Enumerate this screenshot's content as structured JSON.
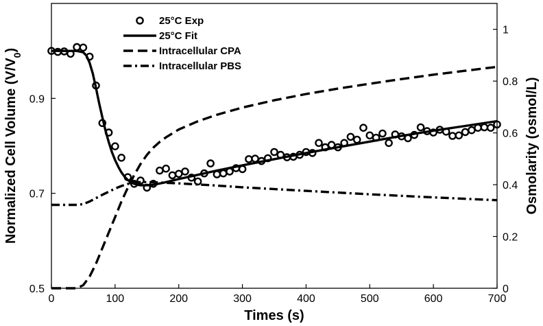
{
  "chart_data": {
    "type": "line",
    "xlabel": "Times (s)",
    "ylabel_left": "Normalized Cell Volume (V/V",
    "ylabel_left_subscript": "0",
    "ylabel_left_close": ")",
    "ylabel_right": "Osmolarity (osmol/L)",
    "xlim": [
      0,
      700
    ],
    "ylim_left": [
      0.5,
      1.1
    ],
    "ylim_right": [
      0,
      1.1
    ],
    "x_ticks": [
      "0",
      "100",
      "200",
      "300",
      "400",
      "500",
      "600",
      "700"
    ],
    "y_left_ticks": [
      "0.5",
      "0.7",
      "0.9"
    ],
    "y_right_ticks": [
      "0",
      "0.2",
      "0.4",
      "0.6",
      "0.8",
      "1"
    ],
    "legend_position": "top-left",
    "series": [
      {
        "name": "25°C Exp",
        "axis": "left",
        "style": "open-circle",
        "x": [
          0,
          10,
          20,
          30,
          40,
          50,
          60,
          70,
          80,
          90,
          100,
          110,
          120,
          130,
          140,
          150,
          160,
          170,
          180,
          190,
          200,
          210,
          220,
          230,
          240,
          250,
          260,
          270,
          280,
          290,
          300,
          310,
          320,
          330,
          340,
          350,
          360,
          370,
          380,
          390,
          400,
          410,
          420,
          430,
          440,
          450,
          460,
          470,
          480,
          490,
          500,
          510,
          520,
          530,
          540,
          550,
          560,
          570,
          580,
          590,
          600,
          610,
          620,
          630,
          640,
          650,
          660,
          670,
          680,
          690,
          700
        ],
        "y": [
          1.0,
          0.998,
          0.999,
          0.994,
          1.008,
          1.007,
          0.988,
          0.927,
          0.848,
          0.828,
          0.799,
          0.775,
          0.734,
          0.72,
          0.727,
          0.712,
          0.72,
          0.748,
          0.752,
          0.738,
          0.741,
          0.746,
          0.733,
          0.725,
          0.742,
          0.763,
          0.74,
          0.742,
          0.746,
          0.753,
          0.751,
          0.772,
          0.773,
          0.768,
          0.774,
          0.787,
          0.781,
          0.776,
          0.777,
          0.781,
          0.787,
          0.785,
          0.806,
          0.797,
          0.802,
          0.797,
          0.806,
          0.819,
          0.813,
          0.838,
          0.822,
          0.817,
          0.826,
          0.806,
          0.824,
          0.82,
          0.816,
          0.823,
          0.839,
          0.831,
          0.828,
          0.834,
          0.83,
          0.821,
          0.822,
          0.829,
          0.833,
          0.838,
          0.839,
          0.838,
          0.845
        ]
      },
      {
        "name": "25°C Fit",
        "axis": "left",
        "style": "solid",
        "x": [
          0,
          40,
          50,
          55,
          60,
          65,
          70,
          75,
          80,
          85,
          90,
          95,
          100,
          105,
          110,
          115,
          120,
          125,
          130,
          135,
          140,
          150,
          160,
          175,
          200,
          230,
          260,
          300,
          350,
          400,
          450,
          500,
          550,
          600,
          650,
          700
        ],
        "y": [
          1.0,
          1.0,
          0.997,
          0.99,
          0.975,
          0.952,
          0.922,
          0.89,
          0.86,
          0.832,
          0.808,
          0.787,
          0.77,
          0.756,
          0.744,
          0.735,
          0.728,
          0.723,
          0.72,
          0.718,
          0.717,
          0.717,
          0.718,
          0.722,
          0.73,
          0.739,
          0.748,
          0.759,
          0.772,
          0.785,
          0.797,
          0.809,
          0.821,
          0.832,
          0.842,
          0.852
        ]
      },
      {
        "name": "Intracellular CPA",
        "axis": "right",
        "style": "dashed",
        "x": [
          0,
          40,
          50,
          60,
          70,
          80,
          90,
          100,
          110,
          120,
          130,
          140,
          150,
          160,
          170,
          180,
          200,
          230,
          260,
          300,
          350,
          400,
          450,
          500,
          550,
          600,
          650,
          700
        ],
        "y": [
          0.0,
          0.0,
          0.012,
          0.045,
          0.095,
          0.155,
          0.215,
          0.275,
          0.335,
          0.388,
          0.437,
          0.48,
          0.515,
          0.543,
          0.565,
          0.583,
          0.613,
          0.645,
          0.67,
          0.698,
          0.726,
          0.75,
          0.771,
          0.79,
          0.808,
          0.825,
          0.84,
          0.855
        ]
      },
      {
        "name": "Intracellular PBS",
        "axis": "right",
        "style": "dash-dot",
        "x": [
          0,
          40,
          50,
          60,
          70,
          80,
          90,
          100,
          110,
          120,
          130,
          140,
          150,
          175,
          200,
          250,
          300,
          400,
          500,
          600,
          700
        ],
        "y": [
          0.322,
          0.322,
          0.325,
          0.335,
          0.348,
          0.361,
          0.373,
          0.385,
          0.395,
          0.403,
          0.408,
          0.41,
          0.41,
          0.408,
          0.405,
          0.398,
          0.39,
          0.376,
          0.363,
          0.351,
          0.34
        ]
      }
    ]
  }
}
